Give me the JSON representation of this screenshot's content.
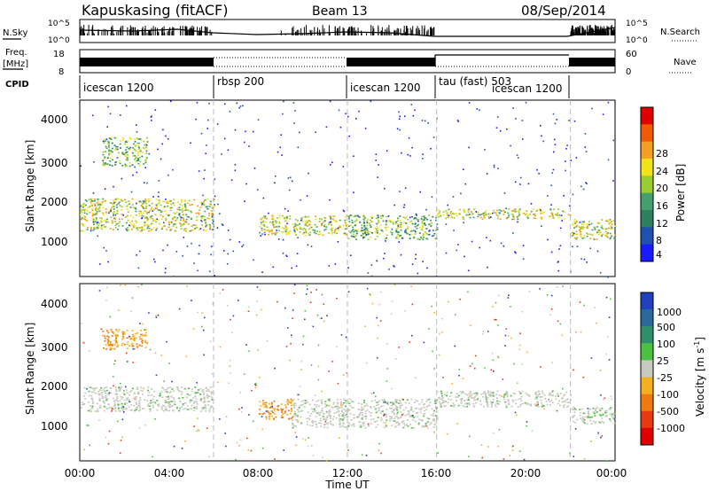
{
  "header": {
    "station": "Kapuskasing (fitACF)",
    "beam": "Beam 13",
    "date": "08/Sep/2014"
  },
  "left_labels": {
    "nsky": "N.Sky",
    "freq": "Freq.",
    "freq_unit": "[MHz]",
    "cpid": "CPID"
  },
  "right_labels": {
    "nsearch": "N.Search",
    "nave": "Nave"
  },
  "noise_panel": {
    "left_ticks": [
      "10^5",
      "10^0"
    ],
    "right_ticks": [
      "10^5",
      "10^0"
    ]
  },
  "freq_panel": {
    "left_ticks": [
      "18",
      "8"
    ],
    "right_ticks": [
      "60",
      "0"
    ]
  },
  "cpid_segments": [
    {
      "label": "icescan 1200",
      "start": 0.0,
      "end": 6.0
    },
    {
      "label": "rbsp 200",
      "start": 6.0,
      "end": 12.0
    },
    {
      "label": "icescan 1200",
      "start": 12.0,
      "end": 16.0
    },
    {
      "label": "tau (fast) 503",
      "start": 16.0,
      "end": 22.0
    },
    {
      "label": "icescan 1200",
      "start": 16.0,
      "end": 22.0
    }
  ],
  "axes": {
    "xlabel": "Time UT",
    "ylabel": "Slant Range [km]",
    "x_ticks": [
      "00:00",
      "04:00",
      "08:00",
      "12:00",
      "16:00",
      "20:00",
      "00:00"
    ],
    "y_ticks": [
      "1000",
      "2000",
      "3000",
      "4000"
    ]
  },
  "power_colorbar": {
    "label": "Power [dB]",
    "ticks": [
      "28",
      "24",
      "20",
      "16",
      "12",
      "8",
      "4"
    ],
    "colors": [
      "#e00000",
      "#f05a00",
      "#f5a020",
      "#f2e21a",
      "#9acd32",
      "#46a06e",
      "#2e7f5e",
      "#2050b0",
      "#1a1aff"
    ]
  },
  "velocity_colorbar": {
    "label": "Velocity [m s",
    "label_sup": "-1",
    "label_end": "]",
    "ticks": [
      "1000",
      "500",
      "100",
      "25",
      "-25",
      "-100",
      "-500",
      "-1000"
    ],
    "colors": [
      "#2040c0",
      "#2a6a9a",
      "#2f8f6a",
      "#4cc040",
      "#c8c8c0",
      "#f5b020",
      "#f07a10",
      "#e83a10",
      "#e00000"
    ]
  },
  "chart_data": {
    "type": "heatmap",
    "x_range_hours": [
      0,
      24
    ],
    "y_range_km": [
      180,
      4500
    ],
    "vertical_dashed_lines_hours": [
      6,
      12,
      16,
      22
    ],
    "power_panel_echo_bands": [
      {
        "t_start": 0.0,
        "t_end": 6.0,
        "r_low": 1300,
        "r_high": 2100,
        "level_db": 12
      },
      {
        "t_start": 1.0,
        "t_end": 3.0,
        "r_low": 2900,
        "r_high": 3600,
        "level_db": 10
      },
      {
        "t_start": 8.0,
        "t_end": 12.0,
        "r_low": 1200,
        "r_high": 1700,
        "level_db": 12
      },
      {
        "t_start": 12.0,
        "t_end": 16.0,
        "r_low": 1100,
        "r_high": 1700,
        "level_db": 10
      },
      {
        "t_start": 16.0,
        "t_end": 22.0,
        "r_low": 1600,
        "r_high": 1850,
        "level_db": 14
      },
      {
        "t_start": 22.0,
        "t_end": 24.0,
        "r_low": 1100,
        "r_high": 1600,
        "level_db": 12
      }
    ],
    "velocity_panel_echo_bands": [
      {
        "t_start": 0.0,
        "t_end": 6.0,
        "r_low": 1400,
        "r_high": 2000,
        "velocity": 0
      },
      {
        "t_start": 1.0,
        "t_end": 3.0,
        "r_low": 2900,
        "r_high": 3400,
        "velocity": -100
      },
      {
        "t_start": 8.0,
        "t_end": 9.5,
        "r_low": 1200,
        "r_high": 1700,
        "velocity": -300
      },
      {
        "t_start": 9.5,
        "t_end": 16.0,
        "r_low": 1000,
        "r_high": 1700,
        "velocity": 0
      },
      {
        "t_start": 16.0,
        "t_end": 22.0,
        "r_low": 1500,
        "r_high": 1900,
        "velocity": 0
      },
      {
        "t_start": 22.0,
        "t_end": 24.0,
        "r_low": 1100,
        "r_high": 1500,
        "velocity": 0
      }
    ]
  }
}
